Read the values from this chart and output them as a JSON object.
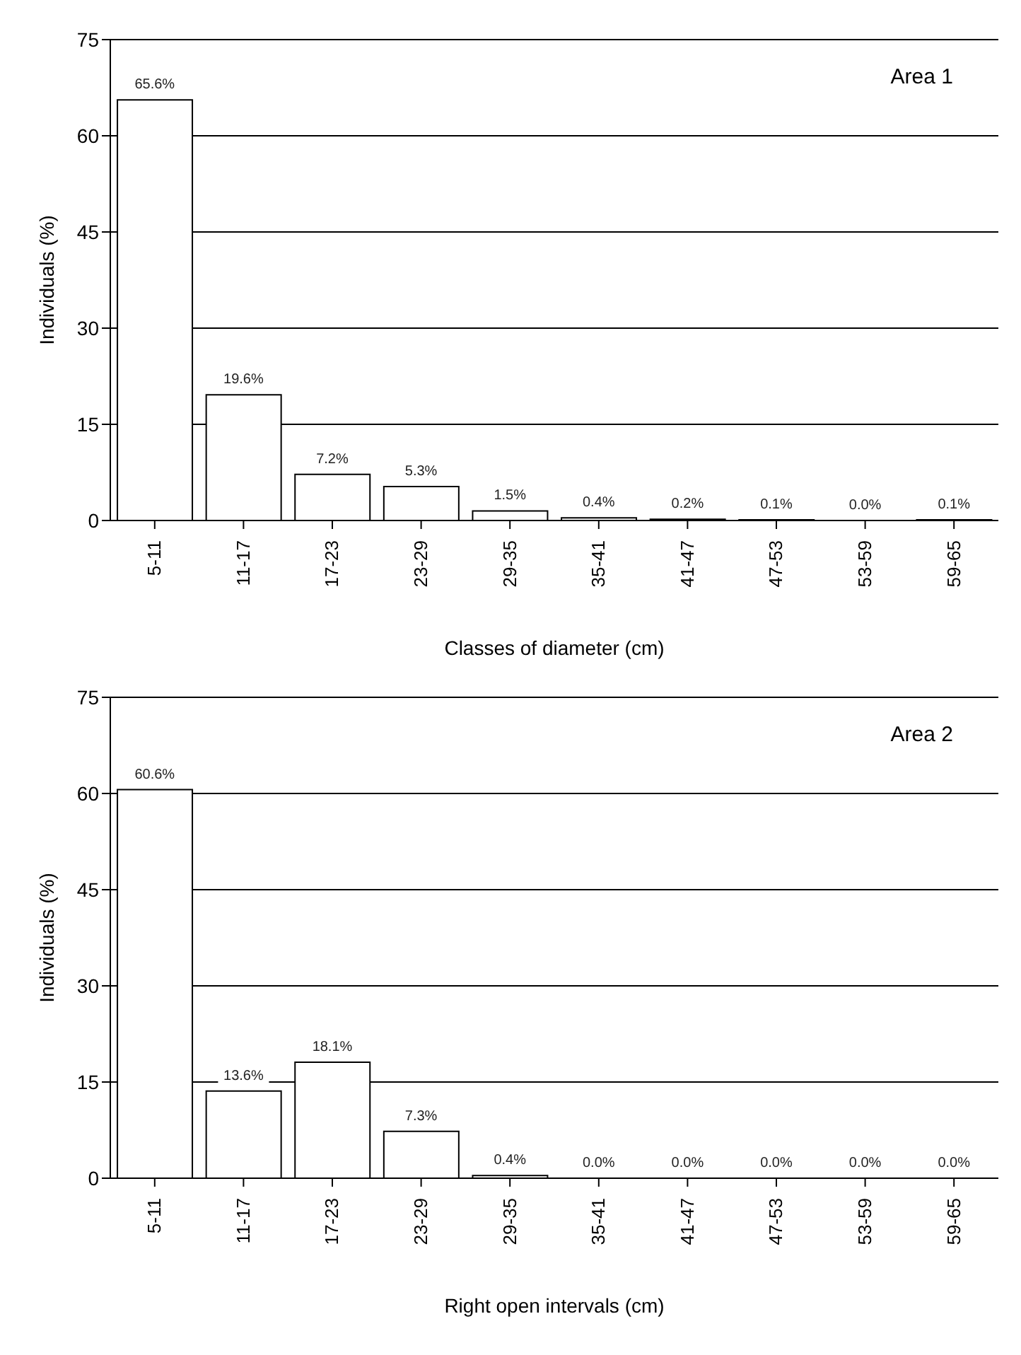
{
  "chart_data": [
    {
      "type": "bar",
      "xlabel": "Classes of diameter (cm)",
      "ylabel": "Individuals (%)",
      "annotations": [
        "Area 1"
      ],
      "categories": [
        "5-11",
        "11-17",
        "17-23",
        "23-29",
        "29-35",
        "35-41",
        "41-47",
        "47-53",
        "53-59",
        "59-65"
      ],
      "values": [
        65.6,
        19.6,
        7.2,
        5.3,
        1.5,
        0.4,
        0.2,
        0.1,
        0.0,
        0.1
      ],
      "value_labels": [
        "65.6%",
        "19.6%",
        "7.2%",
        "5.3%",
        "1.5%",
        "0.4%",
        "0.2%",
        "0.1%",
        "0.0%",
        "0.1%"
      ],
      "color": "#ffffff",
      "ylim": [
        0,
        75
      ],
      "yticks": [
        0,
        15,
        30,
        45,
        60,
        75
      ],
      "grid": "y"
    },
    {
      "type": "bar",
      "xlabel": "Right open intervals (cm)",
      "ylabel": "Individuals (%)",
      "annotations": [
        "Area 2"
      ],
      "categories": [
        "5-11",
        "11-17",
        "17-23",
        "23-29",
        "29-35",
        "35-41",
        "41-47",
        "47-53",
        "53-59",
        "59-65"
      ],
      "values": [
        60.6,
        13.6,
        18.1,
        7.3,
        0.4,
        0.0,
        0.0,
        0.0,
        0.0,
        0.0
      ],
      "value_labels": [
        "60.6%",
        "13.6%",
        "18.1%",
        "7.3%",
        "0.4%",
        "0.0%",
        "0.0%",
        "0.0%",
        "0.0%",
        "0.0%"
      ],
      "color": "#ffffff",
      "ylim": [
        0,
        75
      ],
      "yticks": [
        0,
        15,
        30,
        45,
        60,
        75
      ],
      "grid": "y"
    }
  ]
}
